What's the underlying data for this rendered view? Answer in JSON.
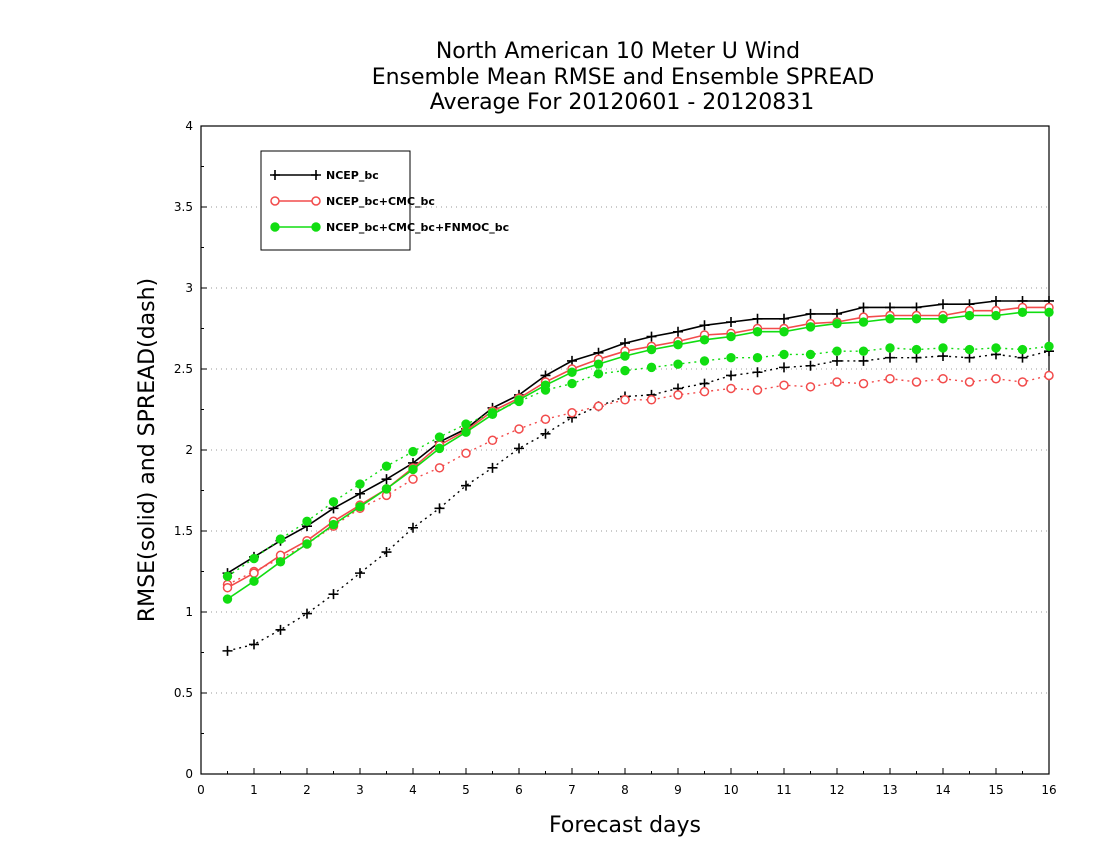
{
  "chart_data": {
    "type": "line",
    "title": [
      "North American 10 Meter U Wind",
      "Ensemble Mean RMSE and Ensemble SPREAD",
      "Average For 20120601 - 20120831"
    ],
    "xlabel": "Forecast days",
    "ylabel": "RMSE(solid) and SPREAD(dash)",
    "xlim": [
      0,
      16
    ],
    "ylim": [
      0,
      4
    ],
    "xticks": [
      0,
      1,
      2,
      3,
      4,
      5,
      6,
      7,
      8,
      9,
      10,
      11,
      12,
      13,
      14,
      15,
      16
    ],
    "yticks": [
      0,
      0.5,
      1,
      1.5,
      2,
      2.5,
      3,
      3.5,
      4
    ],
    "ytick_labels": [
      "0",
      "0.5",
      "1",
      "1.5",
      "2",
      "2.5",
      "3",
      "3.5",
      "4"
    ],
    "grid": true,
    "legend_position": "top-left",
    "x": [
      0.5,
      1,
      1.5,
      2,
      2.5,
      3,
      3.5,
      4,
      4.5,
      5,
      5.5,
      6,
      6.5,
      7,
      7.5,
      8,
      8.5,
      9,
      9.5,
      10,
      10.5,
      11,
      11.5,
      12,
      12.5,
      13,
      13.5,
      14,
      14.5,
      15,
      15.5,
      16
    ],
    "series": [
      {
        "name": "NCEP_bc",
        "color": "#000000",
        "marker": "plus",
        "rmse": [
          1.24,
          1.34,
          1.44,
          1.53,
          1.64,
          1.73,
          1.82,
          1.92,
          2.05,
          2.13,
          2.26,
          2.34,
          2.46,
          2.55,
          2.6,
          2.66,
          2.7,
          2.73,
          2.77,
          2.79,
          2.81,
          2.81,
          2.84,
          2.84,
          2.88,
          2.88,
          2.88,
          2.9,
          2.9,
          2.92,
          2.92,
          2.92
        ],
        "spread": [
          0.76,
          0.8,
          0.89,
          0.99,
          1.11,
          1.24,
          1.37,
          1.52,
          1.64,
          1.78,
          1.89,
          2.01,
          2.1,
          2.2,
          2.27,
          2.33,
          2.34,
          2.38,
          2.41,
          2.46,
          2.48,
          2.51,
          2.52,
          2.55,
          2.55,
          2.57,
          2.57,
          2.58,
          2.57,
          2.59,
          2.57,
          2.61
        ]
      },
      {
        "name": "NCEP_bc+CMC_bc",
        "color": "#f24b4b",
        "marker": "open-circle",
        "rmse": [
          1.15,
          1.24,
          1.35,
          1.44,
          1.56,
          1.66,
          1.76,
          1.89,
          2.03,
          2.12,
          2.24,
          2.32,
          2.42,
          2.5,
          2.56,
          2.61,
          2.64,
          2.67,
          2.71,
          2.72,
          2.75,
          2.75,
          2.78,
          2.79,
          2.82,
          2.83,
          2.83,
          2.83,
          2.86,
          2.86,
          2.88,
          2.88
        ],
        "spread": [
          1.17,
          1.25,
          1.33,
          1.42,
          1.53,
          1.64,
          1.72,
          1.82,
          1.89,
          1.98,
          2.06,
          2.13,
          2.19,
          2.23,
          2.27,
          2.31,
          2.31,
          2.34,
          2.36,
          2.38,
          2.37,
          2.4,
          2.39,
          2.42,
          2.41,
          2.44,
          2.42,
          2.44,
          2.42,
          2.44,
          2.42,
          2.46
        ]
      },
      {
        "name": "NCEP_bc+CMC_bc+FNMOC_bc",
        "color": "#11dd11",
        "marker": "filled-circle",
        "rmse": [
          1.08,
          1.19,
          1.31,
          1.42,
          1.54,
          1.65,
          1.76,
          1.88,
          2.01,
          2.11,
          2.22,
          2.31,
          2.4,
          2.48,
          2.53,
          2.58,
          2.62,
          2.65,
          2.68,
          2.7,
          2.73,
          2.73,
          2.76,
          2.78,
          2.79,
          2.81,
          2.81,
          2.81,
          2.83,
          2.83,
          2.85,
          2.85
        ],
        "spread": [
          1.22,
          1.33,
          1.45,
          1.56,
          1.68,
          1.79,
          1.9,
          1.99,
          2.08,
          2.16,
          2.23,
          2.3,
          2.37,
          2.41,
          2.47,
          2.49,
          2.51,
          2.53,
          2.55,
          2.57,
          2.57,
          2.59,
          2.59,
          2.61,
          2.61,
          2.63,
          2.62,
          2.63,
          2.62,
          2.63,
          2.62,
          2.64
        ]
      }
    ]
  }
}
